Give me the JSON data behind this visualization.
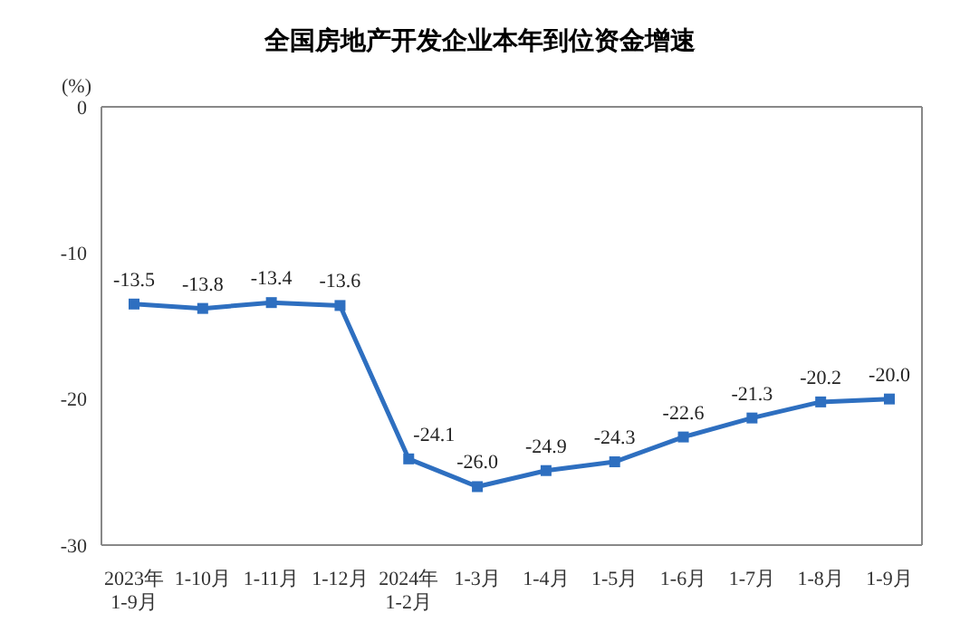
{
  "chart_data": {
    "type": "line",
    "title": "全国房地产开发企业本年到位资金增速",
    "ylabel": "(%)",
    "categories": [
      "2023年\n1-9月",
      "1-10月",
      "1-11月",
      "1-12月",
      "2024年\n1-2月",
      "1-3月",
      "1-4月",
      "1-5月",
      "1-6月",
      "1-7月",
      "1-8月",
      "1-9月"
    ],
    "series": [
      {
        "color": "#2e6fc0",
        "values": [
          -13.5,
          -13.8,
          -13.4,
          -13.6,
          -24.1,
          -26.0,
          -24.9,
          -24.3,
          -22.6,
          -21.3,
          -20.2,
          -20.0
        ],
        "value_labels": [
          "-13.5",
          "-13.8",
          "-13.4",
          "-13.6",
          "-24.1",
          "-26.0",
          "-24.9",
          "-24.3",
          "-22.6",
          "-21.3",
          "-20.2",
          "-20.0"
        ]
      }
    ],
    "ylim": [
      -30,
      0
    ],
    "yticks": [
      0,
      -10,
      -20,
      -30
    ],
    "grid": false,
    "legend": false,
    "marker": "square",
    "line_style": "solid"
  }
}
